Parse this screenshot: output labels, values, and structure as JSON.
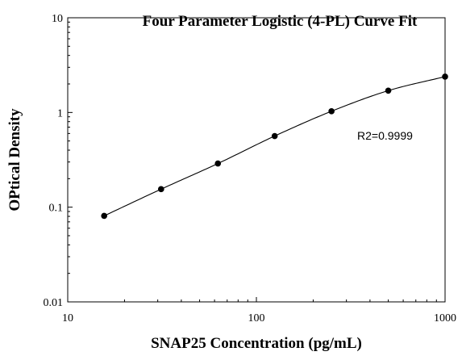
{
  "chart_data": {
    "type": "scatter",
    "title": "Four Parameter Logistic (4-PL) Curve Fit",
    "xlabel": "SNAP25 Concentration (pg/mL)",
    "ylabel": "OPtical Density",
    "x_scale": "log",
    "y_scale": "log",
    "xlim": [
      10,
      1000
    ],
    "ylim": [
      0.01,
      10
    ],
    "x_ticks": [
      {
        "value": 10,
        "label": "10"
      },
      {
        "value": 100,
        "label": "100"
      },
      {
        "value": 1000,
        "label": "1000"
      }
    ],
    "y_ticks": [
      {
        "value": 0.01,
        "label": "0.01"
      },
      {
        "value": 0.1,
        "label": "0.1"
      },
      {
        "value": 1,
        "label": "1"
      },
      {
        "value": 10,
        "label": "10"
      }
    ],
    "grid": false,
    "series": [
      {
        "x": [
          15.6,
          31.25,
          62.5,
          125,
          250,
          500,
          1000
        ],
        "y": [
          0.081,
          0.155,
          0.289,
          0.564,
          1.03,
          1.7,
          2.39
        ],
        "marker": "circle",
        "color": "#000000"
      }
    ],
    "fit_curve": {
      "model": "4-PL",
      "color": "#000000"
    },
    "annotations": [
      {
        "text": "R2=0.9999"
      }
    ]
  }
}
